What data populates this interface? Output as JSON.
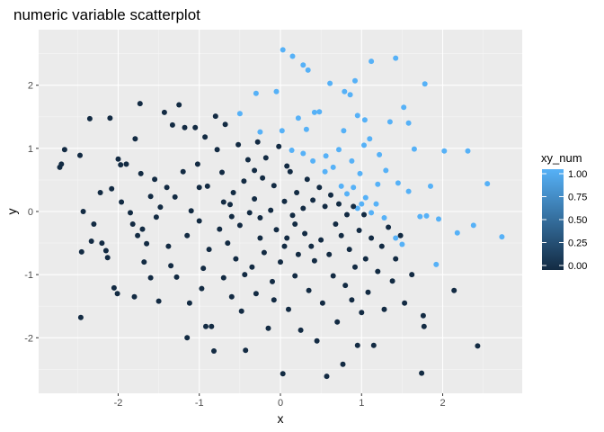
{
  "chart_data": {
    "type": "scatter",
    "title": "numeric variable scatterplot",
    "xlabel": "x",
    "ylabel": "y",
    "xlim": [
      -2.98,
      2.98
    ],
    "ylim": [
      -2.88,
      2.88
    ],
    "x_ticks": [
      -2,
      -1,
      0,
      1,
      2
    ],
    "x_tick_labels": [
      "-2",
      "-1",
      "0",
      "1",
      "2"
    ],
    "y_ticks": [
      -2,
      -1,
      0,
      1,
      2
    ],
    "y_tick_labels": [
      "-2",
      "-1",
      "0",
      "1",
      "2"
    ],
    "grid": true,
    "color_scale": {
      "variable": "xy_num",
      "low_color": "#132B43",
      "high_color": "#56B1F7",
      "limits": [
        0,
        1
      ],
      "legend_ticks": [
        0,
        0.25,
        0.5,
        0.75,
        1
      ],
      "legend_tick_labels": [
        "0.00",
        "0.25",
        "0.50",
        "0.75",
        "1.00"
      ],
      "legend_position": "right"
    },
    "series": [
      {
        "xy_num": 1,
        "points": [
          [
            0.03,
            2.56
          ],
          [
            0.15,
            2.46
          ],
          [
            0.28,
            2.32
          ],
          [
            0.34,
            2.24
          ],
          [
            1.12,
            2.38
          ],
          [
            1.42,
            2.43
          ],
          [
            1.78,
            2.02
          ],
          [
            0.92,
            2.07
          ],
          [
            0.61,
            2.03
          ],
          [
            0.79,
            1.9
          ],
          [
            0.86,
            1.85
          ],
          [
            0.95,
            1.52
          ],
          [
            1.52,
            1.65
          ],
          [
            -0.5,
            1.55
          ],
          [
            -0.3,
            1.87
          ],
          [
            -0.05,
            1.9
          ],
          [
            0.22,
            1.48
          ],
          [
            0.42,
            1.57
          ],
          [
            0.48,
            1.58
          ],
          [
            1.04,
            1.45
          ],
          [
            1.35,
            1.42
          ],
          [
            1.58,
            1.4
          ],
          [
            -0.25,
            1.26
          ],
          [
            0.02,
            1.28
          ],
          [
            0.32,
            1.3
          ],
          [
            0.78,
            1.28
          ],
          [
            1.1,
            1.15
          ],
          [
            1.65,
            0.99
          ],
          [
            2.02,
            0.96
          ],
          [
            2.31,
            0.96
          ],
          [
            0.14,
            0.97
          ],
          [
            0.28,
            0.92
          ],
          [
            0.56,
            0.88
          ],
          [
            0.72,
            0.98
          ],
          [
            0.88,
            0.8
          ],
          [
            1.03,
            1.05
          ],
          [
            1.22,
            0.9
          ],
          [
            0.4,
            0.8
          ],
          [
            0.65,
            0.7
          ],
          [
            0.55,
            0.63
          ],
          [
            0.75,
            0.4
          ],
          [
            0.82,
            0.28
          ],
          [
            0.98,
            0.6
          ],
          [
            1.3,
            0.65
          ],
          [
            1.2,
            0.43
          ],
          [
            1.45,
            0.45
          ],
          [
            1.58,
            0.32
          ],
          [
            1.85,
            0.4
          ],
          [
            1.0,
            0.12
          ],
          [
            1.05,
            0.22
          ],
          [
            0.95,
            0.05
          ],
          [
            1.12,
            -0.02
          ],
          [
            1.28,
            -0.1
          ],
          [
            1.42,
            -0.42
          ],
          [
            1.5,
            -0.52
          ],
          [
            1.72,
            -0.08
          ],
          [
            1.8,
            -0.07
          ],
          [
            1.95,
            -0.12
          ],
          [
            2.18,
            -0.34
          ],
          [
            2.38,
            -0.22
          ],
          [
            2.55,
            0.44
          ],
          [
            2.73,
            -0.4
          ],
          [
            1.92,
            -0.84
          ],
          [
            0.9,
            0.38
          ],
          [
            1.18,
            0.12
          ]
        ]
      },
      {
        "xy_num": 0,
        "points": [
          [
            -2.72,
            0.7
          ],
          [
            -2.7,
            0.75
          ],
          [
            -2.66,
            0.98
          ],
          [
            -2.47,
            0.89
          ],
          [
            -2.45,
            -0.64
          ],
          [
            -2.46,
            -1.68
          ],
          [
            -2.43,
            0.0
          ],
          [
            -2.35,
            1.47
          ],
          [
            -2.33,
            -0.47
          ],
          [
            -2.22,
            0.3
          ],
          [
            -2.2,
            -0.5
          ],
          [
            -2.15,
            -0.62
          ],
          [
            -2.13,
            -0.73
          ],
          [
            -2.1,
            1.48
          ],
          [
            -2.08,
            0.36
          ],
          [
            -2.05,
            -1.21
          ],
          [
            -2.01,
            -1.3
          ],
          [
            -2.0,
            0.83
          ],
          [
            -1.97,
            0.74
          ],
          [
            -1.96,
            0.15
          ],
          [
            -1.9,
            0.75
          ],
          [
            -1.85,
            -0.02
          ],
          [
            -1.82,
            -0.2
          ],
          [
            -1.79,
            1.15
          ],
          [
            -1.76,
            -0.38
          ],
          [
            -1.73,
            1.71
          ],
          [
            -1.72,
            0.6
          ],
          [
            -1.7,
            -0.28
          ],
          [
            -1.68,
            -0.8
          ],
          [
            -1.65,
            -0.51
          ],
          [
            -1.6,
            0.24
          ],
          [
            -1.55,
            0.51
          ],
          [
            -1.53,
            -0.09
          ],
          [
            -1.5,
            -1.42
          ],
          [
            -1.48,
            0.07
          ],
          [
            -1.43,
            1.57
          ],
          [
            -1.4,
            0.38
          ],
          [
            -1.38,
            -0.55
          ],
          [
            -1.35,
            -0.86
          ],
          [
            -1.33,
            1.37
          ],
          [
            -1.3,
            0.23
          ],
          [
            -1.28,
            -1.04
          ],
          [
            -1.25,
            1.69
          ],
          [
            -1.2,
            0.63
          ],
          [
            -1.18,
            1.33
          ],
          [
            -1.15,
            -0.38
          ],
          [
            -1.12,
            -1.45
          ],
          [
            -1.1,
            0.01
          ],
          [
            -1.05,
            1.33
          ],
          [
            -1.02,
            0.75
          ],
          [
            -1.0,
            -0.15
          ],
          [
            -0.97,
            -1.22
          ],
          [
            -0.95,
            -0.9
          ],
          [
            -0.93,
            1.18
          ],
          [
            -0.9,
            0.4
          ],
          [
            -0.88,
            -0.6
          ],
          [
            -0.85,
            -1.82
          ],
          [
            -0.82,
            -2.21
          ],
          [
            -0.8,
            1.51
          ],
          [
            -0.78,
            0.98
          ],
          [
            -0.75,
            -0.28
          ],
          [
            -0.72,
            0.62
          ],
          [
            -0.7,
            -1.05
          ],
          [
            -0.68,
            1.38
          ],
          [
            -0.65,
            -0.5
          ],
          [
            -0.62,
            0.11
          ],
          [
            -0.6,
            -1.35
          ],
          [
            -0.58,
            0.3
          ],
          [
            -0.55,
            -0.75
          ],
          [
            -0.52,
            1.06
          ],
          [
            -0.5,
            -0.22
          ],
          [
            -0.48,
            -1.58
          ],
          [
            -0.45,
            0.48
          ],
          [
            -0.43,
            -2.2
          ],
          [
            -0.4,
            0.82
          ],
          [
            -0.38,
            -0.02
          ],
          [
            -0.35,
            -0.88
          ],
          [
            -0.32,
            0.2
          ],
          [
            -0.3,
            -1.3
          ],
          [
            -0.28,
            1.1
          ],
          [
            -0.25,
            -0.42
          ],
          [
            -0.22,
            0.53
          ],
          [
            -0.2,
            -0.65
          ],
          [
            -0.18,
            0.85
          ],
          [
            -0.15,
            -1.85
          ],
          [
            -0.12,
            0.02
          ],
          [
            -0.1,
            -1.11
          ],
          [
            -0.08,
            0.41
          ],
          [
            -0.05,
            -0.29
          ],
          [
            -0.02,
            1.03
          ],
          [
            0.0,
            -0.8
          ],
          [
            0.03,
            -2.57
          ],
          [
            0.05,
            0.16
          ],
          [
            0.08,
            -0.42
          ],
          [
            0.1,
            -1.55
          ],
          [
            0.12,
            0.63
          ],
          [
            0.15,
            -0.06
          ],
          [
            0.18,
            -1.02
          ],
          [
            0.2,
            0.3
          ],
          [
            0.22,
            -0.68
          ],
          [
            0.25,
            -1.88
          ],
          [
            0.28,
            0.05
          ],
          [
            0.3,
            -0.35
          ],
          [
            0.33,
            0.51
          ],
          [
            0.35,
            -1.25
          ],
          [
            0.38,
            -0.55
          ],
          [
            0.4,
            0.18
          ],
          [
            0.42,
            -0.78
          ],
          [
            0.45,
            -2.05
          ],
          [
            0.48,
            0.38
          ],
          [
            0.5,
            -0.45
          ],
          [
            0.52,
            -1.45
          ],
          [
            0.55,
            0.08
          ],
          [
            0.57,
            -2.61
          ],
          [
            0.6,
            -0.68
          ],
          [
            0.62,
            0.26
          ],
          [
            0.65,
            -1.02
          ],
          [
            0.68,
            -0.2
          ],
          [
            0.7,
            -1.75
          ],
          [
            0.72,
            0.12
          ],
          [
            0.75,
            -0.38
          ],
          [
            0.77,
            -2.42
          ],
          [
            0.8,
            -1.17
          ],
          [
            0.82,
            -0.05
          ],
          [
            0.85,
            -0.6
          ],
          [
            0.88,
            -1.4
          ],
          [
            0.9,
            0.08
          ],
          [
            0.92,
            -0.88
          ],
          [
            0.95,
            -2.12
          ],
          [
            0.97,
            -0.3
          ],
          [
            1.0,
            -1.6
          ],
          [
            1.03,
            -0.05
          ],
          [
            1.05,
            -0.75
          ],
          [
            1.08,
            -1.28
          ],
          [
            1.12,
            -0.42
          ],
          [
            1.15,
            -2.12
          ],
          [
            1.2,
            -0.95
          ],
          [
            1.25,
            -0.55
          ],
          [
            1.28,
            -1.55
          ],
          [
            1.33,
            -0.25
          ],
          [
            1.38,
            -1.1
          ],
          [
            1.42,
            -0.75
          ],
          [
            1.48,
            -0.38
          ],
          [
            1.53,
            -1.45
          ],
          [
            1.62,
            -1.0
          ],
          [
            1.76,
            -1.65
          ],
          [
            1.77,
            -1.82
          ],
          [
            1.74,
            -2.56
          ],
          [
            2.14,
            -1.25
          ],
          [
            2.43,
            -2.13
          ],
          [
            -0.92,
            -1.82
          ],
          [
            -1.15,
            -2.0
          ],
          [
            -0.44,
            -1.0
          ],
          [
            -0.08,
            -1.4
          ],
          [
            0.18,
            -0.2
          ],
          [
            -0.6,
            -0.08
          ],
          [
            -0.32,
            0.65
          ],
          [
            0.08,
            0.72
          ],
          [
            -0.7,
            0.15
          ],
          [
            -1.0,
            0.38
          ],
          [
            -1.6,
            -1.05
          ],
          [
            -1.8,
            -1.35
          ],
          [
            -2.3,
            -0.2
          ],
          [
            -0.25,
            -0.1
          ],
          [
            0.05,
            -0.55
          ]
        ]
      }
    ]
  }
}
